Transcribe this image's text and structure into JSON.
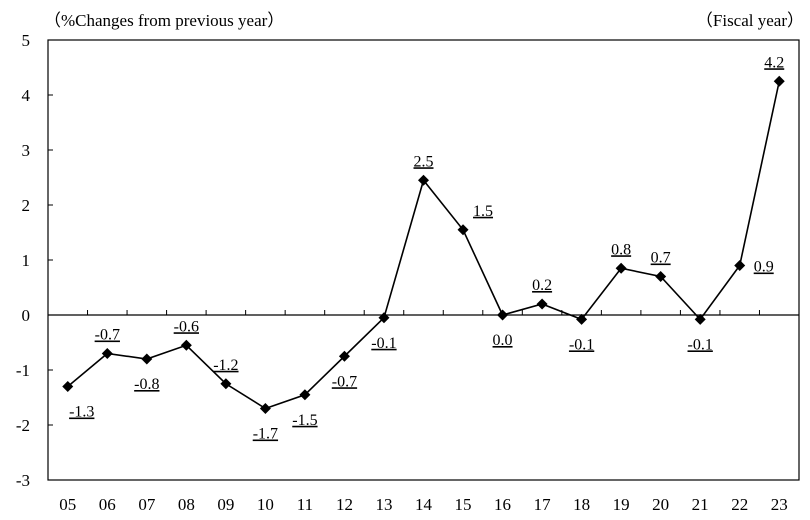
{
  "chart_data": {
    "type": "line",
    "ylabel": "（%Changes from previous year）",
    "xlabel": "（Fiscal year）",
    "x": [
      "05",
      "06",
      "07",
      "08",
      "09",
      "10",
      "11",
      "12",
      "13",
      "14",
      "15",
      "16",
      "17",
      "18",
      "19",
      "20",
      "21",
      "22",
      "23"
    ],
    "values": [
      -1.3,
      -0.7,
      -0.8,
      -0.55,
      -1.25,
      -1.7,
      -1.45,
      -0.75,
      -0.05,
      2.45,
      1.55,
      0.0,
      0.2,
      -0.08,
      0.85,
      0.7,
      -0.08,
      0.9,
      4.25
    ],
    "data_labels": [
      "-1.3",
      "-0.7",
      "-0.8",
      "-0.6",
      "-1.2",
      "-1.7",
      "-1.5",
      "-0.7",
      "-0.1",
      "2.5",
      "1.5",
      "0.0",
      "0.2",
      "-0.1",
      "0.8",
      "0.7",
      "-0.1",
      "0.9",
      "4.2"
    ],
    "ylim": [
      -3,
      5
    ],
    "yticks": [
      "5",
      "4",
      "3",
      "2",
      "1",
      "0",
      "-1",
      "-2",
      "-3"
    ],
    "marker": "diamond",
    "color": "#000000"
  }
}
